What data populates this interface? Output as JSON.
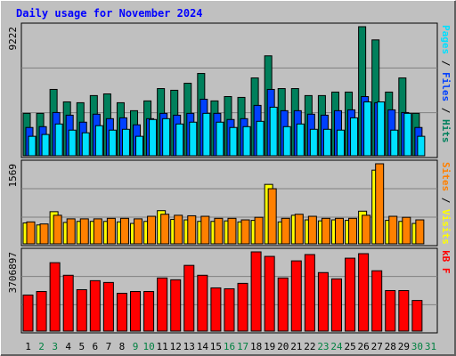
{
  "chart_data": [
    {
      "type": "bar",
      "title": "Daily usage for November 2024",
      "ylim": [
        0,
        9222
      ],
      "yticks": [
        9222
      ],
      "series": [
        {
          "name": "Hits",
          "color": "#00805c",
          "values": [
            3030,
            3030,
            4740,
            3850,
            3790,
            4300,
            4420,
            3790,
            3220,
            3920,
            4800,
            4680,
            5180,
            5880,
            3920,
            4230,
            4170,
            5560,
            7140,
            4800,
            4800,
            4300,
            4300,
            4550,
            4550,
            9222,
            8280,
            4550,
            5560,
            3030,
            null
          ]
        },
        {
          "name": "Files",
          "color": "#0040ff",
          "values": [
            2020,
            2080,
            3090,
            2900,
            2400,
            2970,
            2650,
            2710,
            2210,
            2650,
            3030,
            2900,
            3030,
            4040,
            3030,
            2590,
            2650,
            3600,
            4740,
            3220,
            3220,
            2970,
            2900,
            3220,
            3280,
            4230,
            3790,
            3280,
            3090,
            2020,
            null
          ]
        },
        {
          "name": "Pages",
          "color": "#00e0ff",
          "values": [
            1390,
            1520,
            2270,
            1830,
            1640,
            2150,
            1830,
            1890,
            1390,
            2590,
            2650,
            2270,
            2400,
            3030,
            2400,
            2020,
            2080,
            2460,
            3470,
            2080,
            2270,
            1890,
            1890,
            1830,
            2710,
            3850,
            3850,
            1830,
            3030,
            1390,
            null
          ]
        }
      ]
    },
    {
      "type": "bar",
      "ylim": [
        0,
        1569
      ],
      "yticks": [
        1569
      ],
      "series": [
        {
          "name": "Visits",
          "color": "#ffff00",
          "values": [
            410,
            370,
            630,
            420,
            440,
            440,
            440,
            430,
            400,
            440,
            650,
            480,
            470,
            440,
            440,
            450,
            430,
            460,
            1165,
            430,
            560,
            470,
            450,
            470,
            460,
            640,
            1444,
            460,
            440,
            400,
            null
          ]
        },
        {
          "name": "Sites",
          "color": "#ff8000",
          "values": [
            430,
            390,
            560,
            490,
            490,
            490,
            500,
            500,
            490,
            540,
            580,
            560,
            550,
            540,
            500,
            500,
            470,
            520,
            1080,
            500,
            580,
            540,
            500,
            500,
            500,
            560,
            1569,
            540,
            520,
            470,
            null
          ]
        }
      ]
    },
    {
      "type": "bar",
      "ylim": [
        0,
        3706897
      ],
      "yticks": [
        3706897
      ],
      "categories": [
        "1",
        "2",
        "3",
        "4",
        "5",
        "6",
        "7",
        "8",
        "9",
        "10",
        "11",
        "12",
        "13",
        "14",
        "15",
        "16",
        "17",
        "18",
        "19",
        "20",
        "21",
        "22",
        "23",
        "24",
        "25",
        "26",
        "27",
        "28",
        "29",
        "30",
        "31"
      ],
      "category_colors": [
        "#000000",
        "#008040",
        "#008040",
        "#000000",
        "#000000",
        "#000000",
        "#000000",
        "#000000",
        "#008040",
        "#008040",
        "#000000",
        "#000000",
        "#000000",
        "#000000",
        "#000000",
        "#008040",
        "#008040",
        "#000000",
        "#000000",
        "#000000",
        "#000000",
        "#000000",
        "#008040",
        "#008040",
        "#000000",
        "#000000",
        "#000000",
        "#000000",
        "#000000",
        "#008040",
        "#008040"
      ],
      "series": [
        {
          "name": "kB F",
          "color": "#ff0000",
          "values": [
            1685000,
            1853000,
            3201000,
            2612000,
            1938000,
            2359000,
            2275000,
            1769000,
            1853000,
            1853000,
            2485000,
            2401000,
            3075000,
            2612000,
            2022000,
            1980000,
            2233000,
            3706897,
            3496000,
            2485000,
            3286000,
            3581000,
            2738000,
            2443000,
            3412000,
            3623000,
            2822000,
            1896000,
            1896000,
            1432000,
            null
          ]
        }
      ]
    }
  ]
}
